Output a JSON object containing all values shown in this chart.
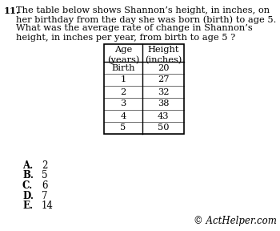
{
  "question_number": "11.",
  "question_text_lines": [
    "The table below shows Shannon’s height, in inches, on",
    "her birthday from the day she was born (birth) to age 5.",
    "What was the average rate of change in Shannon’s",
    "height, in inches per year, from birth to age 5 ?"
  ],
  "col_headers": [
    "Age\n(years)",
    "Height\n(inches)"
  ],
  "table_rows": [
    [
      "Birth",
      "20"
    ],
    [
      "1",
      "27"
    ],
    [
      "2",
      "32"
    ],
    [
      "3",
      "38"
    ],
    [
      "4",
      "43"
    ],
    [
      "5",
      "50"
    ]
  ],
  "answer_choices": [
    [
      "A.",
      "2"
    ],
    [
      "B.",
      "5"
    ],
    [
      "C.",
      "6"
    ],
    [
      "D.",
      "7"
    ],
    [
      "E.",
      "14"
    ]
  ],
  "copyright_text": "© ActHelper.com",
  "bg_color": "#ffffff",
  "text_color": "#000000",
  "font_size_question": 8.2,
  "font_size_table": 8.2,
  "font_size_answers": 8.5,
  "font_size_copyright": 8.5
}
